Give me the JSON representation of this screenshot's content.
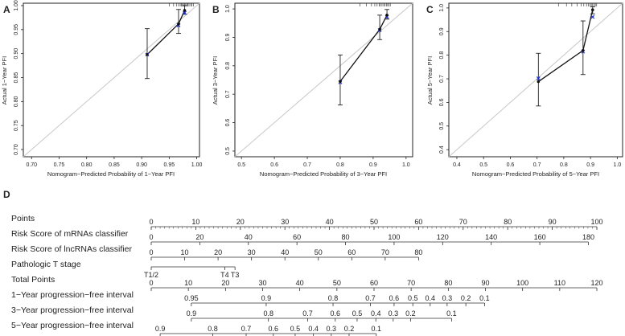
{
  "chart_data": [
    {
      "type": "scatter",
      "panel_label": "A",
      "title": "",
      "xlabel": "Nomogram−Predicted Probability of 1−Year PFI",
      "ylabel": "Actual 1−Year PFI",
      "xlim": [
        0.685,
        1.005
      ],
      "ylim": [
        0.685,
        1.005
      ],
      "xticks": [
        0.7,
        0.75,
        0.8,
        0.85,
        0.9,
        0.95,
        1.0
      ],
      "xtick_labels": [
        "0.70",
        "0.75",
        "0.80",
        "0.85",
        "0.90",
        "0.95",
        "1.00"
      ],
      "yticks": [
        0.7,
        0.75,
        0.8,
        0.85,
        0.9,
        0.95,
        1.0
      ],
      "ytick_labels": [
        "0.70",
        "0.75",
        "0.80",
        "0.85",
        "0.90",
        "0.95",
        "1.00"
      ],
      "points": [
        {
          "x": 0.91,
          "y": 0.898,
          "lo": 0.848,
          "hi": 0.952,
          "bc": 0.898
        },
        {
          "x": 0.967,
          "y": 0.962,
          "lo": 0.942,
          "hi": 0.992,
          "bc": 0.959
        },
        {
          "x": 0.978,
          "y": 0.99,
          "lo": 0.982,
          "hi": 1.0,
          "bc": 0.985
        }
      ],
      "rug": [
        0.95,
        0.958,
        0.963,
        0.967,
        0.97,
        0.972,
        0.974,
        0.976,
        0.978,
        0.98,
        0.982,
        0.984,
        0.986,
        0.989,
        0.991,
        0.994
      ]
    },
    {
      "type": "scatter",
      "panel_label": "B",
      "title": "",
      "xlabel": "Nomogram−Predicted Probability of 3−Year PFI",
      "ylabel": "Actual 3−Year PFI",
      "xlim": [
        0.48,
        1.02
      ],
      "ylim": [
        0.48,
        1.02
      ],
      "xticks": [
        0.5,
        0.6,
        0.7,
        0.8,
        0.9,
        1.0
      ],
      "xtick_labels": [
        "0.5",
        "0.6",
        "0.7",
        "0.8",
        "0.9",
        "1.0"
      ],
      "yticks": [
        0.5,
        0.6,
        0.7,
        0.8,
        0.9,
        1.0
      ],
      "ytick_labels": [
        "0.5",
        "0.6",
        "0.7",
        "0.8",
        "0.9",
        "1.0"
      ],
      "points": [
        {
          "x": 0.8,
          "y": 0.745,
          "lo": 0.662,
          "hi": 0.838,
          "bc": 0.742
        },
        {
          "x": 0.92,
          "y": 0.928,
          "lo": 0.892,
          "hi": 0.978,
          "bc": 0.925
        },
        {
          "x": 0.942,
          "y": 0.978,
          "lo": 0.964,
          "hi": 0.998,
          "bc": 0.972
        }
      ],
      "rug": [
        0.86,
        0.88,
        0.895,
        0.905,
        0.912,
        0.918,
        0.922,
        0.927,
        0.932,
        0.936,
        0.94,
        0.944,
        0.948,
        0.952
      ]
    },
    {
      "type": "scatter",
      "panel_label": "C",
      "title": "",
      "xlabel": "Nomogram−Predicted Probability of 5−Year PFI",
      "ylabel": "Actual 5−Year PFI",
      "xlim": [
        0.37,
        1.02
      ],
      "ylim": [
        0.37,
        1.02
      ],
      "xticks": [
        0.4,
        0.5,
        0.6,
        0.7,
        0.8,
        0.9,
        1.0
      ],
      "xtick_labels": [
        "0.4",
        "0.5",
        "0.6",
        "0.7",
        "0.8",
        "0.9",
        "1.0"
      ],
      "yticks": [
        0.4,
        0.5,
        0.6,
        0.7,
        0.8,
        0.9,
        1.0
      ],
      "ytick_labels": [
        "0.4",
        "0.5",
        "0.6",
        "0.7",
        "0.8",
        "0.9",
        "1.0"
      ],
      "points": [
        {
          "x": 0.705,
          "y": 0.688,
          "lo": 0.585,
          "hi": 0.808,
          "bc": 0.702
        },
        {
          "x": 0.872,
          "y": 0.82,
          "lo": 0.718,
          "hi": 0.945,
          "bc": 0.815
        },
        {
          "x": 0.908,
          "y": 0.992,
          "lo": 0.975,
          "hi": 1.005,
          "bc": 0.962
        }
      ],
      "rug": [
        0.78,
        0.81,
        0.83,
        0.85,
        0.865,
        0.875,
        0.885,
        0.892,
        0.898,
        0.903,
        0.908,
        0.913,
        0.918,
        0.923
      ]
    }
  ],
  "nomogram": {
    "panel_label": "D",
    "scale_min": 0,
    "scale_max": 100,
    "rows": [
      {
        "label": "Points",
        "min_tick": 0,
        "max_tick": 100,
        "ticks": [
          {
            "v": 0,
            "t": "0"
          },
          {
            "v": 10,
            "t": "10"
          },
          {
            "v": 20,
            "t": "20"
          },
          {
            "v": 30,
            "t": "30"
          },
          {
            "v": 40,
            "t": "40"
          },
          {
            "v": 50,
            "t": "50"
          },
          {
            "v": 60,
            "t": "60"
          },
          {
            "v": 70,
            "t": "70"
          },
          {
            "v": 80,
            "t": "80"
          },
          {
            "v": 90,
            "t": "90"
          },
          {
            "v": 100,
            "t": "100"
          }
        ],
        "minor_step": 1
      },
      {
        "label": "Risk Score of mRNAs classifier",
        "ticks": [
          {
            "v": 0,
            "t": "0"
          },
          {
            "v": 10.9,
            "t": "20"
          },
          {
            "v": 21.8,
            "t": "40"
          },
          {
            "v": 32.7,
            "t": "60"
          },
          {
            "v": 43.6,
            "t": "80"
          },
          {
            "v": 54.5,
            "t": "100"
          },
          {
            "v": 65.4,
            "t": "120"
          },
          {
            "v": 76.3,
            "t": "140"
          },
          {
            "v": 87.2,
            "t": "160"
          },
          {
            "v": 98.1,
            "t": "180"
          }
        ],
        "minor_step": 0
      },
      {
        "label": "Risk Score of lncRNAs classifier",
        "ticks": [
          {
            "v": 0,
            "t": "0"
          },
          {
            "v": 7.5,
            "t": "10"
          },
          {
            "v": 15,
            "t": "20"
          },
          {
            "v": 22.5,
            "t": "30"
          },
          {
            "v": 30,
            "t": "40"
          },
          {
            "v": 37.5,
            "t": "50"
          },
          {
            "v": 45,
            "t": "60"
          },
          {
            "v": 52.5,
            "t": "70"
          },
          {
            "v": 60,
            "t": "80"
          }
        ],
        "minor_step": 0
      },
      {
        "label": "Pathologic T stage",
        "ticks": [
          {
            "v": 0,
            "t": "T1/2"
          },
          {
            "v": 16.5,
            "t": "T4"
          },
          {
            "v": 18.8,
            "t": "T3"
          }
        ],
        "minor_step": 0,
        "labels_below": true
      },
      {
        "label": "Total Points",
        "ticks": [
          {
            "v": 0,
            "t": "0"
          },
          {
            "v": 8.33,
            "t": "10"
          },
          {
            "v": 16.67,
            "t": "20"
          },
          {
            "v": 25,
            "t": "30"
          },
          {
            "v": 33.33,
            "t": "40"
          },
          {
            "v": 41.67,
            "t": "50"
          },
          {
            "v": 50,
            "t": "60"
          },
          {
            "v": 58.33,
            "t": "70"
          },
          {
            "v": 66.67,
            "t": "80"
          },
          {
            "v": 75,
            "t": "90"
          },
          {
            "v": 83.33,
            "t": "100"
          },
          {
            "v": 91.67,
            "t": "110"
          },
          {
            "v": 100,
            "t": "120"
          }
        ],
        "minor_step": 0
      },
      {
        "label": "1−Year progression−free interval",
        "ticks": [
          {
            "v": 9,
            "t": "0.95"
          },
          {
            "v": 25.8,
            "t": "0.9"
          },
          {
            "v": 40.8,
            "t": "0.8"
          },
          {
            "v": 49.2,
            "t": "0.7"
          },
          {
            "v": 54.5,
            "t": "0.6"
          },
          {
            "v": 58.7,
            "t": "0.5"
          },
          {
            "v": 62.6,
            "t": "0.4"
          },
          {
            "v": 66.4,
            "t": "0.3"
          },
          {
            "v": 70.6,
            "t": "0.2"
          },
          {
            "v": 74.8,
            "t": "0.1"
          }
        ],
        "minor_step": 0
      },
      {
        "label": "3−Year progression−free interval",
        "ticks": [
          {
            "v": 0,
            "t": "0.9"
          },
          {
            "v": 17.3,
            "t": "0.8"
          },
          {
            "v": 26.1,
            "t": "0.7"
          },
          {
            "v": 32.3,
            "t": "0.6"
          },
          {
            "v": 37.2,
            "t": "0.5"
          },
          {
            "v": 41.4,
            "t": "0.4"
          },
          {
            "v": 45.3,
            "t": "0.3"
          },
          {
            "v": 49.2,
            "t": "0.2"
          },
          {
            "v": 58.4,
            "t": "0.1"
          }
        ],
        "minor_step": 0,
        "origin_shift": 9
      },
      {
        "label": "5−Year progression−free interval",
        "ticks": [
          {
            "v": 0,
            "t": "0.9"
          },
          {
            "v": 11.8,
            "t": "0.8"
          },
          {
            "v": 19.3,
            "t": "0.7"
          },
          {
            "v": 25.4,
            "t": "0.6"
          },
          {
            "v": 30.3,
            "t": "0.5"
          },
          {
            "v": 34.4,
            "t": "0.4"
          },
          {
            "v": 38.4,
            "t": "0.3"
          },
          {
            "v": 42.4,
            "t": "0.2"
          },
          {
            "v": 48.5,
            "t": "0.1"
          }
        ],
        "minor_step": 0,
        "origin_shift": 2
      }
    ]
  }
}
